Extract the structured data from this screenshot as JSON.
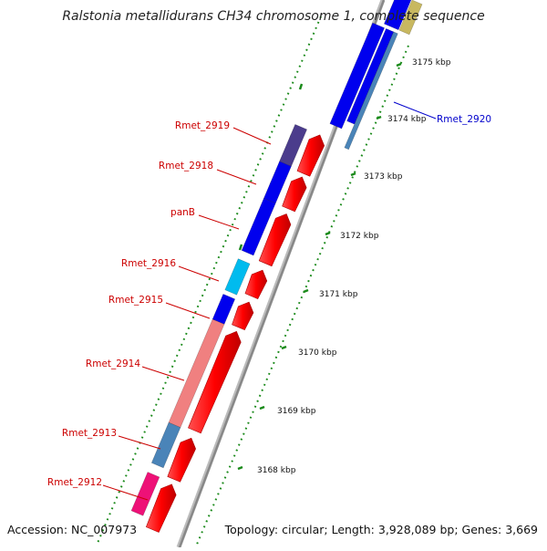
{
  "title": "Ralstonia metallidurans CH34 chromosome 1, complete sequence",
  "accession_text": "Accession: NC_007973",
  "topology_text": "Topology: circular; Length: 3,928,089 bp; Genes: 3,669",
  "colors": {
    "forward": "#ff0000",
    "reverse_blue": "#0000ee",
    "reverse_purple": "#4b3c8c",
    "reverse_cyan": "#00bbee",
    "reverse_salmon": "#f08080",
    "reverse_steel": "#4a84b8",
    "reverse_magenta": "#ee1177",
    "reverse_khaki": "#c8b860",
    "backbone": "#888888",
    "tick": "#1a8a1a",
    "label_red": "#cc0000",
    "label_blue": "#0000cc"
  },
  "scale_labels": [
    "3175 kbp",
    "3174 kbp",
    "3173 kbp",
    "3172 kbp",
    "3171 kbp",
    "3170 kbp",
    "3169 kbp",
    "3168 kbp"
  ],
  "gene_labels": [
    {
      "name": "Rmet_2920",
      "color": "blue"
    },
    {
      "name": "Rmet_2919",
      "color": "red"
    },
    {
      "name": "Rmet_2918",
      "color": "red"
    },
    {
      "name": "panB",
      "color": "red"
    },
    {
      "name": "Rmet_2916",
      "color": "red"
    },
    {
      "name": "Rmet_2915",
      "color": "red"
    },
    {
      "name": "Rmet_2914",
      "color": "red"
    },
    {
      "name": "Rmet_2913",
      "color": "red"
    },
    {
      "name": "Rmet_2912",
      "color": "red"
    }
  ]
}
